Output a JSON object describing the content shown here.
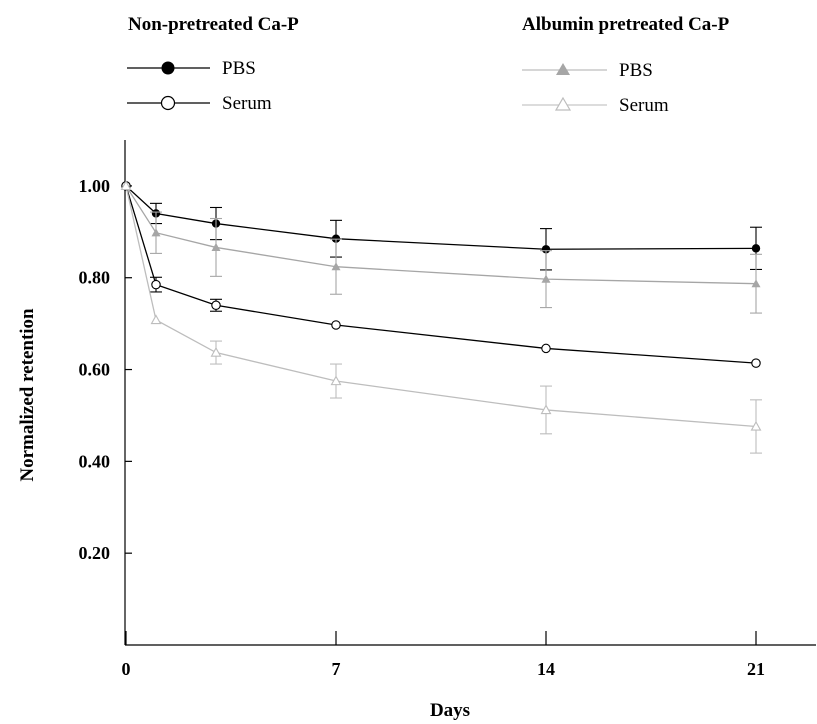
{
  "legend": {
    "group1_title": "Non-pretreated Ca-P",
    "group2_title": "Albumin pretreated Ca-P",
    "pbs_label": "PBS",
    "serum_label": "Serum"
  },
  "chart_data": {
    "type": "line",
    "xlabel": "Days",
    "ylabel": "Normalized retention",
    "x_ticks": [
      "0",
      "7",
      "14",
      "21"
    ],
    "x_tick_values": [
      0,
      7,
      14,
      21
    ],
    "y_ticks": [
      "0.20",
      "0.40",
      "0.60",
      "0.80",
      "1.00"
    ],
    "y_tick_values": [
      0.2,
      0.4,
      0.6,
      0.8,
      1.0
    ],
    "xlim": [
      0,
      23
    ],
    "ylim": [
      0,
      1.1
    ],
    "grid": false,
    "legend_placement": "top",
    "x": [
      0,
      1,
      3,
      7,
      14,
      21
    ],
    "series": [
      {
        "name": "PBS",
        "group": "Non-pretreated Ca-P",
        "marker": "filled-circle",
        "color": "#000000",
        "values": [
          1.0,
          0.94,
          0.918,
          0.885,
          0.862,
          0.864
        ],
        "errors": [
          0,
          0.022,
          0.035,
          0.04,
          0.045,
          0.046
        ]
      },
      {
        "name": "Serum",
        "group": "Non-pretreated Ca-P",
        "marker": "open-circle",
        "color": "#000000",
        "values": [
          1.0,
          0.785,
          0.74,
          0.697,
          0.646,
          0.614
        ],
        "errors": [
          0,
          0.016,
          0.013,
          0,
          0,
          0
        ]
      },
      {
        "name": "PBS",
        "group": "Albumin pretreated Ca-P",
        "marker": "filled-triangle",
        "color": "#a6a6a6",
        "values": [
          1.0,
          0.898,
          0.866,
          0.824,
          0.797,
          0.787
        ],
        "errors": [
          0,
          0.045,
          0.063,
          0.06,
          0.062,
          0.064
        ]
      },
      {
        "name": "Serum",
        "group": "Albumin pretreated Ca-P",
        "marker": "open-triangle",
        "color": "#bdbdbd",
        "values": [
          1.0,
          0.708,
          0.637,
          0.575,
          0.512,
          0.476
        ],
        "errors": [
          0,
          0,
          0.025,
          0.037,
          0.052,
          0.058
        ]
      }
    ]
  }
}
